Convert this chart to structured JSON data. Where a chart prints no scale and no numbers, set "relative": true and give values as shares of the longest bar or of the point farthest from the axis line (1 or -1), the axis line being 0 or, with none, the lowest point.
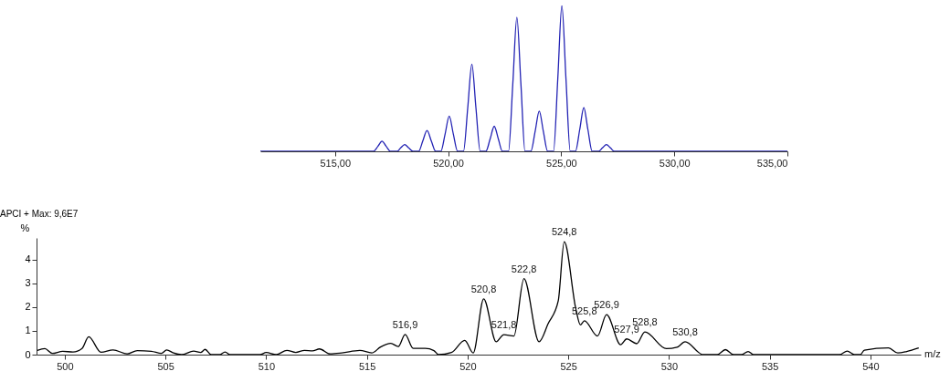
{
  "chart_data": [
    {
      "type": "line",
      "relative": true,
      "color": "#2323b4",
      "xlim": [
        511.7,
        535
      ],
      "xticks": [
        {
          "value": 515,
          "label": "515,00"
        },
        {
          "value": 520,
          "label": "520,00"
        },
        {
          "value": 525,
          "label": "525,00"
        },
        {
          "value": 530,
          "label": "530,00"
        },
        {
          "value": 535,
          "label": "535,00"
        }
      ],
      "x": [
        511.7,
        516.7,
        516.9,
        517.08,
        517.26,
        517.45,
        517.75,
        517.9,
        518.08,
        518.26,
        518.45,
        518.7,
        518.88,
        519.07,
        519.26,
        519.45,
        519.68,
        519.87,
        520.05,
        520.23,
        520.42,
        520.68,
        520.87,
        521.05,
        521.23,
        521.42,
        521.67,
        521.86,
        522.04,
        522.22,
        522.4,
        522.67,
        522.86,
        523.04,
        523.22,
        523.4,
        523.66,
        523.85,
        524.03,
        524.21,
        524.4,
        524.66,
        524.85,
        525.03,
        525.21,
        525.4,
        525.63,
        525.82,
        526.0,
        526.18,
        526.37,
        526.65,
        526.82,
        527.0,
        527.18,
        527.35,
        535
      ],
      "values": [
        0,
        0,
        0.035,
        0.069,
        0.035,
        0,
        0,
        0.023,
        0.046,
        0.023,
        0,
        0,
        0.07,
        0.143,
        0.07,
        0,
        0,
        0.12,
        0.241,
        0.12,
        0,
        0,
        0.3,
        0.598,
        0.3,
        0,
        0,
        0.086,
        0.172,
        0.086,
        0,
        0,
        0.46,
        0.92,
        0.46,
        0,
        0,
        0.138,
        0.276,
        0.138,
        0,
        0,
        0.5,
        1,
        0.5,
        0,
        0,
        0.15,
        0.3,
        0.15,
        0,
        0,
        0.023,
        0.046,
        0.023,
        0,
        0
      ]
    },
    {
      "type": "line",
      "title": "APCI + Max: 9,6E7",
      "xlabel": "m/z",
      "ylabel": "%",
      "color": "#000000",
      "xlim": [
        498.6,
        542.5
      ],
      "ylim": [
        0,
        4.9
      ],
      "xticks": [
        500,
        505,
        510,
        515,
        520,
        525,
        530,
        535,
        540
      ],
      "yticks": [
        0,
        1,
        2,
        3,
        4
      ],
      "x": [
        498.64,
        499.01,
        499.38,
        499.9,
        500.41,
        500.86,
        501.19,
        501.8,
        502.4,
        503.1,
        503.6,
        504.3,
        504.8,
        505.06,
        505.4,
        505.8,
        506.4,
        506.75,
        506.97,
        507.27,
        507.7,
        507.96,
        508.2,
        509.7,
        510.0,
        510.5,
        511.03,
        511.47,
        511.9,
        512.3,
        512.65,
        513.17,
        513.76,
        514.65,
        515.24,
        515.68,
        516.19,
        516.56,
        516.9,
        517.3,
        517.9,
        518.33,
        518.55,
        519.2,
        519.86,
        520.28,
        520.8,
        521.42,
        521.8,
        522.3,
        522.8,
        523.55,
        524.0,
        524.5,
        524.8,
        525.38,
        525.6,
        525.8,
        526.45,
        526.9,
        527.6,
        527.9,
        528.4,
        528.8,
        529.87,
        530.4,
        530.8,
        531.7,
        532.4,
        532.8,
        533.2,
        533.6,
        533.93,
        534.2,
        538.47,
        538.85,
        539.2,
        539.5,
        539.7,
        540.9,
        541.36,
        541.8,
        542.4
      ],
      "values": [
        0.18,
        0.25,
        0.05,
        0.14,
        0.11,
        0.26,
        0.75,
        0.1,
        0.2,
        0.03,
        0.17,
        0.14,
        0.05,
        0.2,
        0.07,
        0,
        0.15,
        0.09,
        0.22,
        0,
        0,
        0.11,
        0,
        0,
        0.09,
        0,
        0.18,
        0.09,
        0.18,
        0.16,
        0.24,
        0.03,
        0.07,
        0.18,
        0.07,
        0.32,
        0.47,
        0.34,
        0.85,
        0.26,
        0.26,
        0.17,
        0,
        0.09,
        0.6,
        0.07,
        2.34,
        0.54,
        0.84,
        0.78,
        3.19,
        0.54,
        1.3,
        2.25,
        4.74,
        1.9,
        1.25,
        1.42,
        0.78,
        1.68,
        0.42,
        0.66,
        0.46,
        0.95,
        0.25,
        0.31,
        0.54,
        0,
        0,
        0.21,
        0,
        0,
        0.13,
        0,
        0,
        0.15,
        0,
        0,
        0.19,
        0.28,
        0.07,
        0.13,
        0.28
      ],
      "annotations": [
        {
          "text": "516,9",
          "x": 516.9,
          "y": 0.85
        },
        {
          "text": "520,8",
          "x": 520.8,
          "y": 2.34
        },
        {
          "text": "521,8",
          "x": 521.8,
          "y": 0.84
        },
        {
          "text": "522,8",
          "x": 522.8,
          "y": 3.19
        },
        {
          "text": "524,8",
          "x": 524.8,
          "y": 4.74
        },
        {
          "text": "525,8",
          "x": 525.8,
          "y": 1.42
        },
        {
          "text": "526,9",
          "x": 526.9,
          "y": 1.68
        },
        {
          "text": "527,9",
          "x": 527.9,
          "y": 0.66
        },
        {
          "text": "528,8",
          "x": 528.8,
          "y": 0.95
        },
        {
          "text": "530,8",
          "x": 530.8,
          "y": 0.54
        }
      ]
    }
  ]
}
